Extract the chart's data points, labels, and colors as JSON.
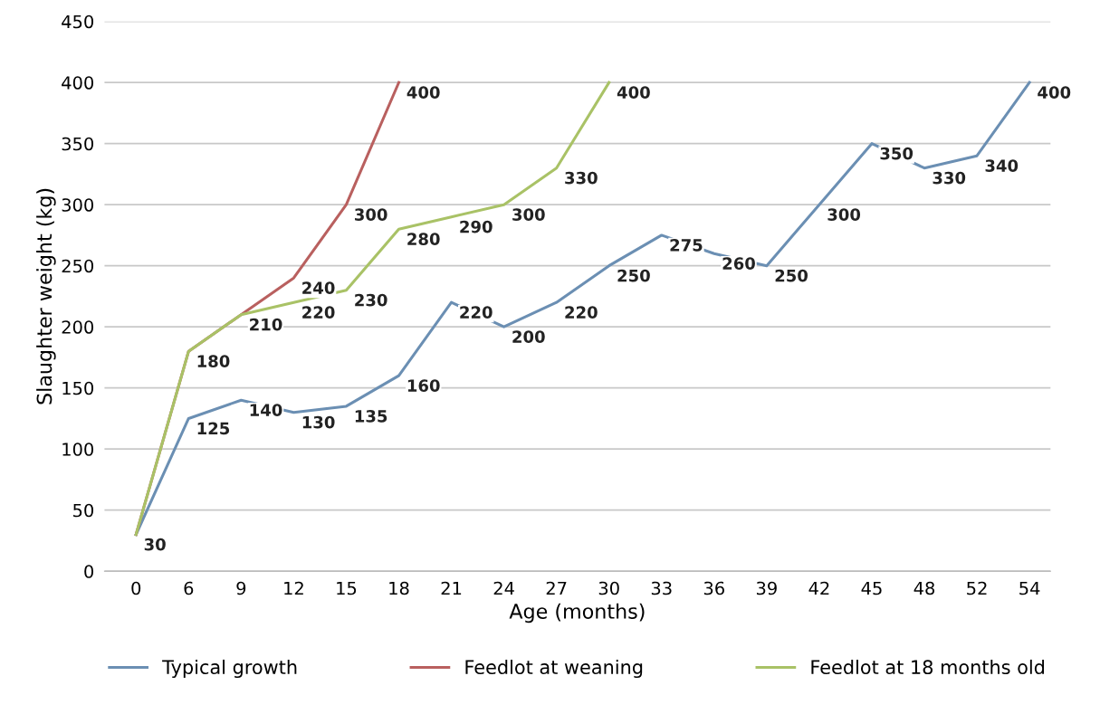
{
  "chart_data": {
    "type": "line",
    "xlabel": "Age (months)",
    "ylabel": "Slaughter weight (kg)",
    "categories": [
      "0",
      "6",
      "9",
      "12",
      "15",
      "18",
      "21",
      "24",
      "27",
      "30",
      "33",
      "36",
      "39",
      "42",
      "45",
      "48",
      "52",
      "54"
    ],
    "series": [
      {
        "name": "Typical growth",
        "color": "#6b8fb3",
        "values": [
          30,
          125,
          140,
          130,
          135,
          160,
          220,
          200,
          220,
          250,
          275,
          260,
          250,
          300,
          350,
          330,
          340,
          400
        ],
        "value_labels": [
          "30",
          "125",
          "140",
          "130",
          "135",
          "160",
          "220",
          "200",
          "220",
          "250",
          "275",
          "260",
          "250",
          "300",
          "350",
          "330",
          "340",
          "400"
        ]
      },
      {
        "name": "Feedlot at weaning",
        "color": "#b9605f",
        "values": [
          30,
          180,
          210,
          240,
          300,
          400,
          null,
          null,
          null,
          null,
          null,
          null,
          null,
          null,
          null,
          null,
          null,
          null
        ],
        "value_labels": [
          null,
          null,
          null,
          "240",
          "300",
          "400",
          null,
          null,
          null,
          null,
          null,
          null,
          null,
          null,
          null,
          null,
          null,
          null
        ]
      },
      {
        "name": "Feedlot at 18 months old",
        "color": "#a9c266",
        "values": [
          30,
          180,
          210,
          220,
          230,
          280,
          290,
          300,
          330,
          400,
          null,
          null,
          null,
          null,
          null,
          null,
          null,
          null
        ],
        "value_labels": [
          null,
          "180",
          "210",
          "220",
          "230",
          "280",
          "290",
          "300",
          "330",
          "400",
          null,
          null,
          null,
          null,
          null,
          null,
          null,
          null
        ]
      }
    ],
    "ylim": [
      0,
      450
    ],
    "yticks": [
      0,
      50,
      100,
      150,
      200,
      250,
      300,
      350,
      400,
      450
    ],
    "grid": "y",
    "legend": "bottom",
    "marker": "none",
    "line_style": "solid"
  }
}
